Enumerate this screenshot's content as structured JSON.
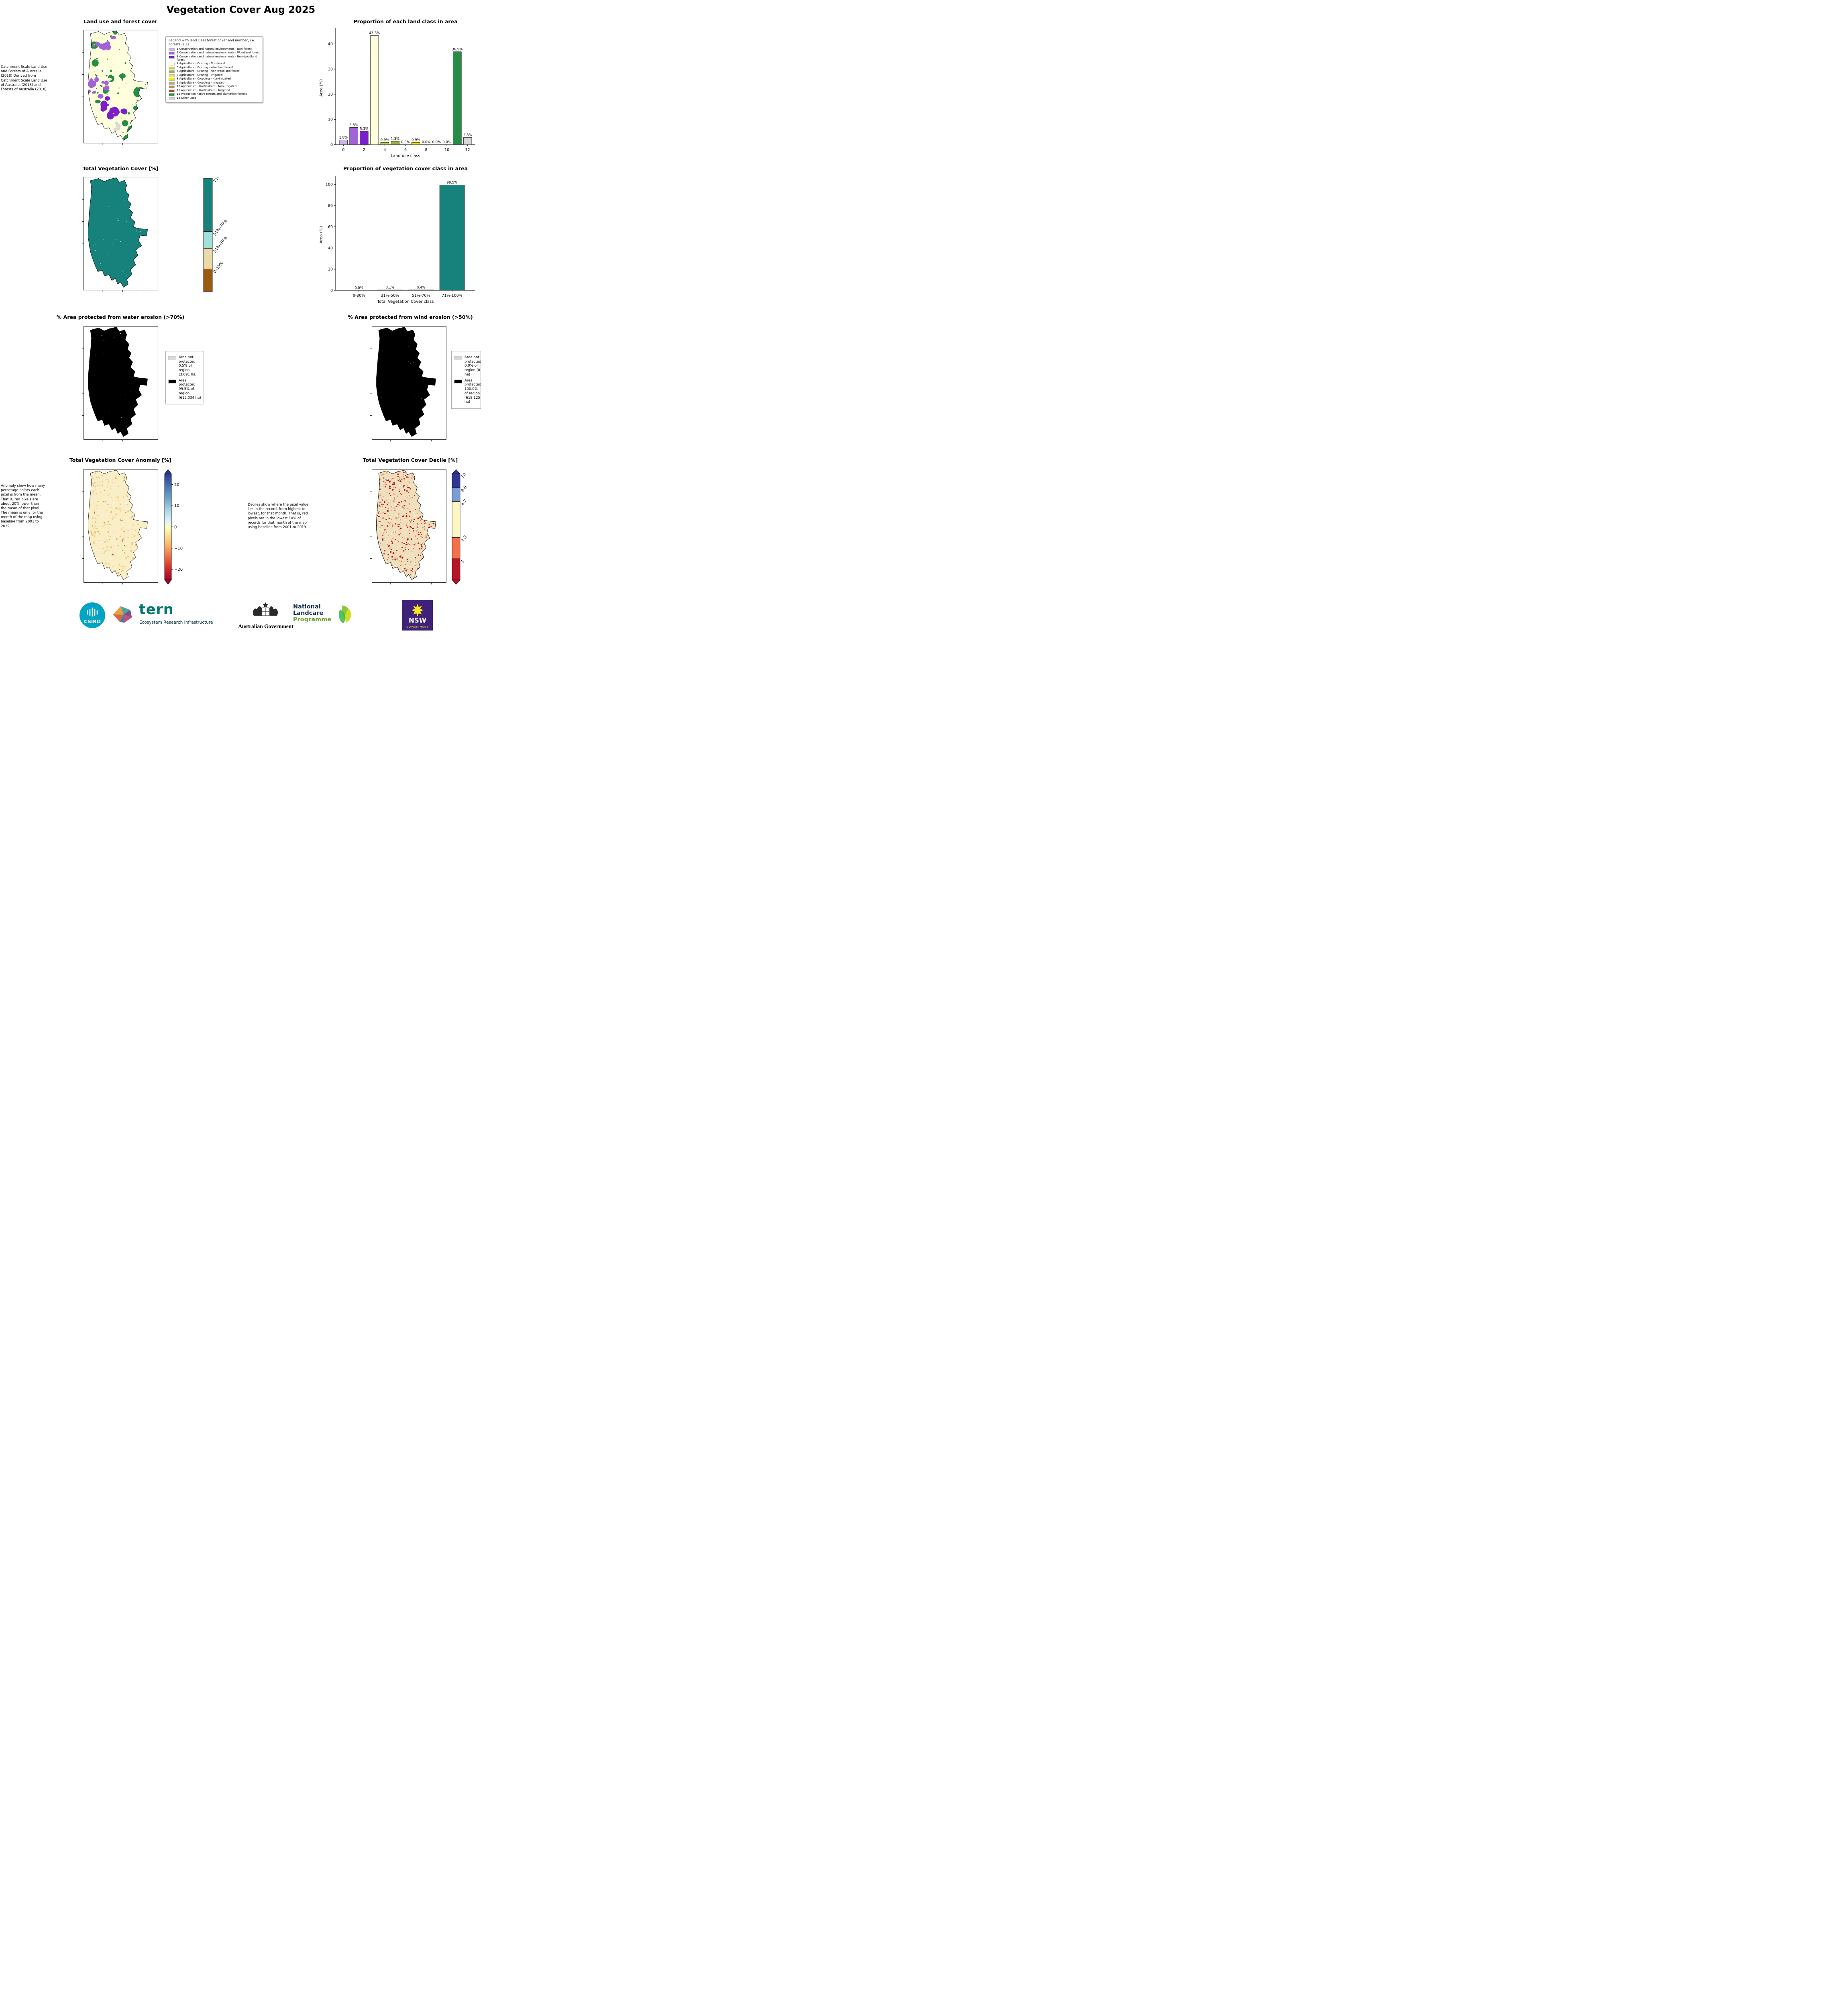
{
  "title": "Vegetation Cover Aug 2025",
  "panels": {
    "land_use": {
      "title": "Land use and forest cover",
      "side_note": "Catchment Scale Land Use and Forests of Australia (2018) Derived from Catchment Scale Land Use of Australia (2018) and Forests of Australia (2018)",
      "legend_title": "Legend with land class forest cover and number, i.e. Forests is 12",
      "legend_items": [
        {
          "label": "1 Conservation and natural environments - Non-forest",
          "color": "#CBB7E8"
        },
        {
          "label": "2 Conservation and natural environments - Woodland forest",
          "color": "#A263D6"
        },
        {
          "label": "3 Conservation and natural environments - Non-Woodland forest",
          "color": "#7A1FC9"
        },
        {
          "label": "4 Agriculture - Grazing - Non-forest",
          "color": "#FFFFDE"
        },
        {
          "label": "5 Agriculture - Grazing - Woodland forest",
          "color": "#C7D44F"
        },
        {
          "label": "6 Agriculture - Grazing - Non-woodland forest",
          "color": "#9FB03C"
        },
        {
          "label": "7 Agriculture - Grazing - Irrigated",
          "color": "#EFE642"
        },
        {
          "label": "8 Agriculture - Cropping - Non-irrigated",
          "color": "#FFE600"
        },
        {
          "label": "9 Agriculture - Cropping - Irrigated",
          "color": "#C2AD56"
        },
        {
          "label": "10 Agriculture - Horticulture - Non-irrigated",
          "color": "#AE8C77"
        },
        {
          "label": "11 Agriculture - Horticulture - Irrigated",
          "color": "#9C5219"
        },
        {
          "label": "12 Production native forests and plantation forests",
          "color": "#278D45"
        },
        {
          "label": "13 Other uses",
          "color": "#D9D9D9"
        }
      ]
    },
    "veg_cover_map": {
      "title": "Total Vegetation Cover [%]",
      "colorbar": [
        {
          "label": "71%-100%",
          "color": "#17817B"
        },
        {
          "label": "51%-70%",
          "color": "#A3E0DB"
        },
        {
          "label": "31%-50%",
          "color": "#EBD9A6"
        },
        {
          "label": "0-30%",
          "color": "#9A5B10"
        }
      ]
    },
    "water_erosion": {
      "title": "% Area protected from water erosion (>70%)",
      "legend": [
        {
          "label": "Area not protected 0.5% of region (3,091 ha)",
          "color": "#D9D9D9"
        },
        {
          "label": "Area protected 99.5% of region (615,034 ha)",
          "color": "#000000"
        }
      ]
    },
    "wind_erosion": {
      "title": "% Area protected from wind erosion (>50%)",
      "legend": [
        {
          "label": "Area not protected 0.0% of region (0 ha)",
          "color": "#D9D9D9"
        },
        {
          "label": "Area protected 100.0% of region (618,125 ha)",
          "color": "#000000"
        }
      ]
    },
    "anomaly": {
      "title": "Total Vegetation Cover Anomaly [%]",
      "side_note": "Anomaly show how many percetage points each pixel is from the mean. That is, red pixels are about 20% lower than the mean of that pixel. The mean is only for the month of the map using baseline from 2001 to 2019.",
      "colorbar_ticks": [
        "20",
        "10",
        "0",
        "−10",
        "−20"
      ]
    },
    "decile": {
      "title": "Total Vegetation Cover Decile [%]",
      "side_note": "Deciles show where the pixel value lies in the record, from highest to lowest, for that month. That is, red pixels are in the lowest 10% of records for that month of the map using baseline from 2001 to 2019.",
      "colorbar": [
        {
          "label": "10",
          "color": "#313695"
        },
        {
          "label": "8-9",
          "color": "#7B9DD1"
        },
        {
          "label": "4-7",
          "color": "#FEF5C4"
        },
        {
          "label": "2-3",
          "color": "#F4714B"
        },
        {
          "label": "1",
          "color": "#B51526"
        }
      ]
    }
  },
  "chart_data": [
    {
      "type": "bar",
      "title": "Proportion of each land class in area",
      "xlabel": "Land use class",
      "ylabel": "Area (%)",
      "x": [
        0,
        1,
        2,
        3,
        4,
        5,
        6,
        7,
        8,
        9,
        10,
        11,
        12
      ],
      "values": [
        1.8,
        6.8,
        5.3,
        43.3,
        0.9,
        1.3,
        0.0,
        0.9,
        0.0,
        0.0,
        0.0,
        36.9,
        2.8
      ],
      "bar_labels": [
        "1.8%",
        "6.8%",
        "5.3%",
        "43.3%",
        "0.9%",
        "1.3%",
        "0.0%",
        "0.9%",
        "0.0%",
        "0.0%",
        "0.0%",
        "36.9%",
        "2.8%"
      ],
      "colors": [
        "#CBB7E8",
        "#A263D6",
        "#7A1FC9",
        "#FFFFDE",
        "#C7D44F",
        "#9FB03C",
        "#EFE642",
        "#FFE600",
        "#C2AD56",
        "#AE8C77",
        "#9C5219",
        "#278D45",
        "#D9D9D9"
      ],
      "ylim": [
        0,
        45
      ],
      "yticks": [
        0,
        10,
        20,
        30,
        40
      ],
      "xticks": [
        0,
        2,
        4,
        6,
        8,
        10,
        12
      ],
      "grid": false,
      "legend_position": "none"
    },
    {
      "type": "bar",
      "title": "Proportion of vegetation cover class in area",
      "xlabel": "Total Vegetation Cover class",
      "ylabel": "Area (%)",
      "categories": [
        "0-30%",
        "31%-50%",
        "51%-70%",
        "71%-100%"
      ],
      "values": [
        0.0,
        0.1,
        0.4,
        99.5
      ],
      "bar_labels": [
        "0.0%",
        "0.1%",
        "0.4%",
        "99.5%"
      ],
      "colors": [
        "#9A5B10",
        "#EBD9A6",
        "#A3E0DB",
        "#17817B"
      ],
      "ylim": [
        0,
        105
      ],
      "yticks": [
        0,
        20,
        40,
        60,
        80,
        100
      ],
      "grid": false,
      "legend_position": "none"
    }
  ],
  "footer": {
    "csiro": "CSIRO",
    "tern_name": "tern",
    "tern_sub": "Ecosystem Research Infrastructure",
    "aus_gov": "Australian Government",
    "landcare_1": "National",
    "landcare_2": "Landcare",
    "landcare_3": "Programme",
    "nsw": "NSW",
    "nsw_sub": "GOVERNMENT"
  }
}
